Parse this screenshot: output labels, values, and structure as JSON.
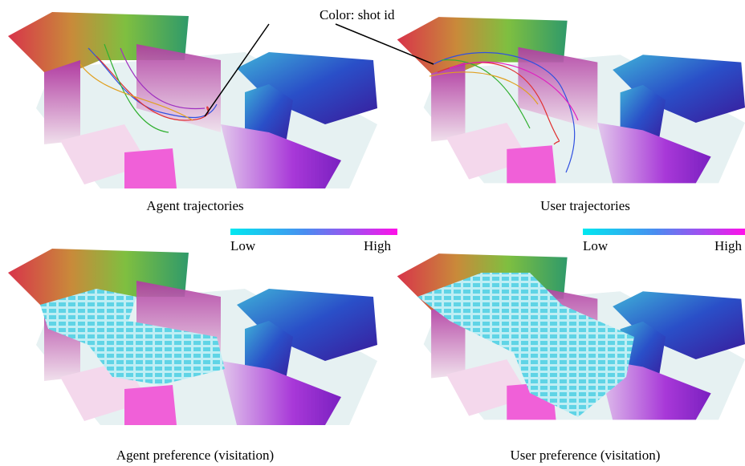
{
  "annotation": "Color: shot id",
  "panels": [
    {
      "caption": "Agent trajectories"
    },
    {
      "caption": "User trajectories"
    },
    {
      "caption": "Agent preference (visitation)",
      "colorbar": {
        "low": "Low",
        "high": "High"
      }
    },
    {
      "caption": "User preference (visitation)",
      "colorbar": {
        "low": "Low",
        "high": "High"
      }
    }
  ]
}
